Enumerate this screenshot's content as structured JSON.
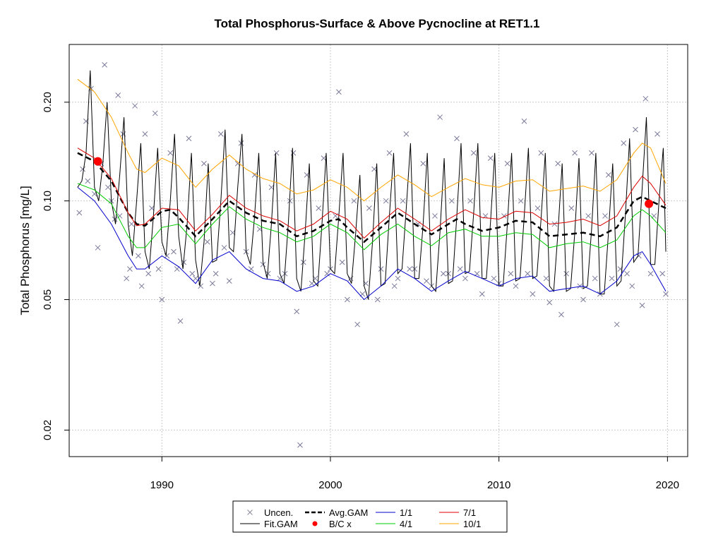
{
  "chart_data": {
    "type": "line",
    "title": "Total Phosphorus-Surface & Above Pycnocline at RET1.1",
    "xlabel": "",
    "ylabel": "Total Phosphorus [mg/L]",
    "y_scale": "log",
    "xlim": [
      1984.5,
      2021.2
    ],
    "ylim": [
      0.0166,
      0.3
    ],
    "x_ticks": [
      1990,
      2000,
      2010,
      2020
    ],
    "x_tick_labels": [
      "1990",
      "2000",
      "2010",
      "2020"
    ],
    "y_ticks": [
      0.02,
      0.05,
      0.1,
      0.2
    ],
    "y_tick_labels": [
      "0.02",
      "0.05",
      "0.10",
      "0.20"
    ],
    "grid": true,
    "reference_line_y": 0.1,
    "legend_position": "bottom",
    "legend": [
      {
        "label": "Uncen.",
        "kind": "cross",
        "color": "#8a8a9a"
      },
      {
        "label": "Fit.GAM",
        "kind": "line",
        "color": "#000000"
      },
      {
        "label": "Avg.GAM",
        "kind": "dashed",
        "color": "#000000"
      },
      {
        "label": "B/C x",
        "kind": "dot",
        "color": "#ff0000"
      },
      {
        "label": "1/1",
        "kind": "line",
        "color": "#0000cc"
      },
      {
        "label": "4/1",
        "kind": "line",
        "color": "#00cc00"
      },
      {
        "label": "7/1",
        "kind": "line",
        "color": "#dd0000"
      },
      {
        "label": "10/1",
        "kind": "line",
        "color": "#ffa500"
      }
    ],
    "series": [
      {
        "name": "Avg.GAM",
        "color": "#000000",
        "x": [
          1985.0,
          1986.0,
          1987.0,
          1988.0,
          1988.5,
          1989.0,
          1990.0,
          1990.5,
          1991.0,
          1992.0,
          1993.0,
          1994.0,
          1995.0,
          1996.0,
          1997.0,
          1998.0,
          1999.0,
          2000.0,
          2000.5,
          2001.0,
          2002.0,
          2003.0,
          2004.0,
          2005.0,
          2006.0,
          2007.0,
          2007.5,
          2008.0,
          2009.0,
          2010.0,
          2011.0,
          2012.0,
          2013.0,
          2014.0,
          2015.0,
          2016.0,
          2017.0,
          2018.0,
          2018.5,
          2019.0,
          2019.9
        ],
        "y": [
          0.14,
          0.132,
          0.115,
          0.092,
          0.085,
          0.084,
          0.093,
          0.094,
          0.089,
          0.078,
          0.088,
          0.1,
          0.092,
          0.087,
          0.085,
          0.078,
          0.081,
          0.087,
          0.088,
          0.083,
          0.075,
          0.083,
          0.092,
          0.085,
          0.079,
          0.085,
          0.088,
          0.085,
          0.081,
          0.083,
          0.087,
          0.086,
          0.078,
          0.079,
          0.08,
          0.078,
          0.083,
          0.1,
          0.103,
          0.1,
          0.095
        ]
      },
      {
        "name": "1/1",
        "color": "#0000cc",
        "x": [
          1985.0,
          1986.0,
          1987.0,
          1988.0,
          1988.5,
          1989.0,
          1990.0,
          1991.0,
          1992.0,
          1993.0,
          1994.0,
          1995.0,
          1996.0,
          1997.0,
          1998.0,
          1999.0,
          2000.0,
          2001.0,
          2002.0,
          2003.0,
          2004.0,
          2005.0,
          2006.0,
          2007.0,
          2008.0,
          2009.0,
          2010.0,
          2011.0,
          2012.0,
          2013.0,
          2014.0,
          2015.0,
          2016.0,
          2017.0,
          2018.0,
          2018.5,
          2019.0,
          2019.9
        ],
        "y": [
          0.11,
          0.1,
          0.085,
          0.068,
          0.062,
          0.062,
          0.068,
          0.063,
          0.056,
          0.066,
          0.07,
          0.062,
          0.058,
          0.057,
          0.053,
          0.055,
          0.06,
          0.057,
          0.05,
          0.055,
          0.062,
          0.058,
          0.053,
          0.057,
          0.061,
          0.058,
          0.055,
          0.058,
          0.059,
          0.053,
          0.054,
          0.055,
          0.052,
          0.057,
          0.068,
          0.07,
          0.064,
          0.053
        ]
      },
      {
        "name": "4/1",
        "color": "#00cc00",
        "x": [
          1985.0,
          1986.0,
          1987.0,
          1988.0,
          1988.5,
          1989.0,
          1990.0,
          1991.0,
          1992.0,
          1993.0,
          1994.0,
          1995.0,
          1996.0,
          1997.0,
          1998.0,
          1999.0,
          2000.0,
          2001.0,
          2002.0,
          2003.0,
          2004.0,
          2005.0,
          2006.0,
          2007.0,
          2008.0,
          2009.0,
          2010.0,
          2011.0,
          2012.0,
          2013.0,
          2014.0,
          2015.0,
          2016.0,
          2017.0,
          2018.0,
          2018.5,
          2019.0,
          2019.9
        ],
        "y": [
          0.113,
          0.108,
          0.098,
          0.078,
          0.072,
          0.072,
          0.083,
          0.085,
          0.074,
          0.085,
          0.096,
          0.088,
          0.083,
          0.08,
          0.075,
          0.078,
          0.085,
          0.08,
          0.071,
          0.079,
          0.085,
          0.078,
          0.073,
          0.08,
          0.082,
          0.078,
          0.078,
          0.08,
          0.079,
          0.072,
          0.074,
          0.075,
          0.072,
          0.076,
          0.09,
          0.094,
          0.09,
          0.08
        ]
      },
      {
        "name": "7/1",
        "color": "#dd0000",
        "x": [
          1985.0,
          1986.0,
          1987.0,
          1988.0,
          1988.5,
          1989.0,
          1990.0,
          1991.0,
          1992.0,
          1993.0,
          1994.0,
          1995.0,
          1996.0,
          1997.0,
          1998.0,
          1999.0,
          2000.0,
          2001.0,
          2002.0,
          2003.0,
          2004.0,
          2005.0,
          2006.0,
          2007.0,
          2008.0,
          2009.0,
          2010.0,
          2011.0,
          2012.0,
          2013.0,
          2014.0,
          2015.0,
          2016.0,
          2017.0,
          2018.0,
          2018.5,
          2019.0,
          2019.9
        ],
        "y": [
          0.145,
          0.135,
          0.117,
          0.092,
          0.084,
          0.085,
          0.095,
          0.094,
          0.081,
          0.091,
          0.104,
          0.095,
          0.09,
          0.087,
          0.081,
          0.085,
          0.093,
          0.088,
          0.077,
          0.086,
          0.095,
          0.088,
          0.081,
          0.088,
          0.094,
          0.089,
          0.088,
          0.093,
          0.092,
          0.085,
          0.086,
          0.088,
          0.084,
          0.09,
          0.11,
          0.119,
          0.113,
          0.097
        ]
      },
      {
        "name": "10/1",
        "color": "#ffa500",
        "x": [
          1985.0,
          1986.0,
          1987.0,
          1988.0,
          1988.5,
          1989.0,
          1990.0,
          1991.0,
          1992.0,
          1993.0,
          1994.0,
          1995.0,
          1996.0,
          1997.0,
          1998.0,
          1999.0,
          2000.0,
          2001.0,
          2002.0,
          2003.0,
          2004.0,
          2005.0,
          2006.0,
          2007.0,
          2008.0,
          2009.0,
          2010.0,
          2011.0,
          2012.0,
          2013.0,
          2014.0,
          2015.0,
          2016.0,
          2017.0,
          2018.0,
          2018.5,
          2019.0,
          2019.9
        ],
        "y": [
          0.235,
          0.215,
          0.18,
          0.14,
          0.125,
          0.122,
          0.135,
          0.128,
          0.11,
          0.125,
          0.138,
          0.125,
          0.117,
          0.113,
          0.105,
          0.108,
          0.116,
          0.11,
          0.1,
          0.11,
          0.12,
          0.112,
          0.103,
          0.11,
          0.117,
          0.112,
          0.11,
          0.115,
          0.116,
          0.107,
          0.109,
          0.111,
          0.107,
          0.116,
          0.14,
          0.15,
          0.145,
          0.113
        ]
      }
    ],
    "fit_gam": {
      "name": "Fit.GAM",
      "color": "#000000",
      "x": [
        1985.0,
        1985.25,
        1985.5,
        1985.75,
        1986.0,
        1986.25,
        1986.5,
        1986.75,
        1987.0,
        1987.25,
        1987.5,
        1987.75,
        1988.0,
        1988.25,
        1988.5,
        1988.75,
        1989.0,
        1989.25,
        1989.5,
        1989.75,
        1990.0,
        1990.25,
        1990.5,
        1990.75,
        1991.0,
        1991.25,
        1991.5,
        1991.75,
        1992.0,
        1992.25,
        1992.5,
        1992.75,
        1993.0,
        1993.25,
        1993.5,
        1993.75,
        1994.0,
        1994.25,
        1994.5,
        1994.75,
        1995.0,
        1995.25,
        1995.5,
        1995.75,
        1996.0,
        1996.25,
        1996.5,
        1996.75,
        1997.0,
        1997.25,
        1997.5,
        1997.75,
        1998.0,
        1998.25,
        1998.5,
        1998.75,
        1999.0,
        1999.25,
        1999.5,
        1999.75,
        2000.0,
        2000.25,
        2000.5,
        2000.75,
        2001.0,
        2001.25,
        2001.5,
        2001.75,
        2002.0,
        2002.25,
        2002.5,
        2002.75,
        2003.0,
        2003.25,
        2003.5,
        2003.75,
        2004.0,
        2004.25,
        2004.5,
        2004.75,
        2005.0,
        2005.25,
        2005.5,
        2005.75,
        2006.0,
        2006.25,
        2006.5,
        2006.75,
        2007.0,
        2007.25,
        2007.5,
        2007.75,
        2008.0,
        2008.25,
        2008.5,
        2008.75,
        2009.0,
        2009.25,
        2009.5,
        2009.75,
        2010.0,
        2010.25,
        2010.5,
        2010.75,
        2011.0,
        2011.25,
        2011.5,
        2011.75,
        2012.0,
        2012.25,
        2012.5,
        2012.75,
        2013.0,
        2013.25,
        2013.5,
        2013.75,
        2014.0,
        2014.25,
        2014.5,
        2014.75,
        2015.0,
        2015.25,
        2015.5,
        2015.75,
        2016.0,
        2016.25,
        2016.5,
        2016.75,
        2017.0,
        2017.25,
        2017.5,
        2017.75,
        2018.0,
        2018.25,
        2018.5,
        2018.75,
        2019.0,
        2019.25,
        2019.5,
        2019.75,
        2019.9
      ],
      "y": [
        0.11,
        0.115,
        0.14,
        0.25,
        0.11,
        0.1,
        0.13,
        0.2,
        0.1,
        0.085,
        0.12,
        0.18,
        0.085,
        0.068,
        0.1,
        0.15,
        0.07,
        0.062,
        0.09,
        0.145,
        0.075,
        0.068,
        0.1,
        0.16,
        0.078,
        0.062,
        0.085,
        0.14,
        0.066,
        0.055,
        0.075,
        0.13,
        0.065,
        0.066,
        0.1,
        0.165,
        0.072,
        0.07,
        0.11,
        0.16,
        0.07,
        0.064,
        0.09,
        0.14,
        0.065,
        0.058,
        0.085,
        0.14,
        0.06,
        0.056,
        0.085,
        0.145,
        0.058,
        0.053,
        0.08,
        0.13,
        0.057,
        0.055,
        0.085,
        0.14,
        0.062,
        0.06,
        0.09,
        0.14,
        0.06,
        0.056,
        0.08,
        0.12,
        0.055,
        0.05,
        0.075,
        0.13,
        0.055,
        0.056,
        0.09,
        0.14,
        0.06,
        0.062,
        0.095,
        0.15,
        0.058,
        0.058,
        0.085,
        0.14,
        0.055,
        0.053,
        0.08,
        0.135,
        0.056,
        0.057,
        0.09,
        0.15,
        0.06,
        0.061,
        0.092,
        0.15,
        0.058,
        0.058,
        0.086,
        0.14,
        0.055,
        0.055,
        0.085,
        0.14,
        0.057,
        0.058,
        0.09,
        0.145,
        0.058,
        0.059,
        0.088,
        0.14,
        0.055,
        0.053,
        0.08,
        0.13,
        0.053,
        0.054,
        0.08,
        0.135,
        0.054,
        0.055,
        0.082,
        0.14,
        0.052,
        0.052,
        0.08,
        0.13,
        0.055,
        0.057,
        0.09,
        0.155,
        0.065,
        0.068,
        0.11,
        0.18,
        0.064,
        0.064,
        0.1,
        0.145,
        0.07
      ]
    },
    "observations": {
      "name": "Uncen.",
      "marker": "x",
      "color": "#7a7a9a",
      "x": [
        1985.1,
        1985.3,
        1985.5,
        1985.6,
        1985.8,
        1986.0,
        1986.2,
        1986.4,
        1986.6,
        1986.8,
        1987.0,
        1987.2,
        1987.4,
        1987.5,
        1987.7,
        1987.9,
        1988.1,
        1988.2,
        1988.4,
        1988.6,
        1988.8,
        1989.0,
        1989.2,
        1989.4,
        1989.6,
        1989.8,
        1990.0,
        1990.3,
        1990.5,
        1990.7,
        1990.9,
        1991.1,
        1991.3,
        1991.6,
        1991.8,
        1992.0,
        1992.3,
        1992.5,
        1992.7,
        1993.0,
        1993.2,
        1993.5,
        1993.7,
        1994.0,
        1994.2,
        1994.5,
        1994.7,
        1995.0,
        1995.3,
        1995.5,
        1995.8,
        1996.0,
        1996.3,
        1996.5,
        1996.8,
        1997.0,
        1997.3,
        1997.6,
        1997.8,
        1998.0,
        1998.2,
        1998.4,
        1998.6,
        1998.9,
        1999.1,
        1999.3,
        1999.6,
        1999.8,
        2000.0,
        2000.3,
        2000.5,
        2000.7,
        2001.0,
        2001.2,
        2001.4,
        2001.6,
        2001.9,
        2002.1,
        2002.3,
        2002.6,
        2002.8,
        2003.0,
        2003.3,
        2003.5,
        2003.8,
        2004.0,
        2004.3,
        2004.5,
        2004.7,
        2005.0,
        2005.2,
        2005.5,
        2005.7,
        2006.0,
        2006.2,
        2006.5,
        2006.7,
        2007.0,
        2007.2,
        2007.5,
        2007.7,
        2008.0,
        2008.3,
        2008.5,
        2008.7,
        2009.0,
        2009.2,
        2009.5,
        2009.7,
        2010.0,
        2010.3,
        2010.5,
        2010.7,
        2011.0,
        2011.3,
        2011.5,
        2011.7,
        2012.0,
        2012.3,
        2012.5,
        2012.8,
        2013.0,
        2013.3,
        2013.5,
        2013.7,
        2014.0,
        2014.3,
        2014.5,
        2014.8,
        2015.0,
        2015.3,
        2015.5,
        2015.7,
        2016.0,
        2016.3,
        2016.5,
        2016.7,
        2017.0,
        2017.2,
        2017.4,
        2017.6,
        2017.9,
        2018.1,
        2018.3,
        2018.5,
        2018.7,
        2019.0,
        2019.2,
        2019.4,
        2019.7,
        2019.9
      ],
      "y": [
        0.092,
        0.125,
        0.175,
        0.115,
        0.22,
        0.105,
        0.072,
        0.13,
        0.26,
        0.11,
        0.1,
        0.088,
        0.21,
        0.09,
        0.16,
        0.058,
        0.062,
        0.085,
        0.195,
        0.068,
        0.055,
        0.16,
        0.06,
        0.095,
        0.185,
        0.062,
        0.05,
        0.068,
        0.14,
        0.07,
        0.062,
        0.043,
        0.065,
        0.155,
        0.06,
        0.058,
        0.055,
        0.13,
        0.075,
        0.056,
        0.06,
        0.16,
        0.072,
        0.057,
        0.08,
        0.13,
        0.15,
        0.07,
        0.062,
        0.12,
        0.082,
        0.064,
        0.06,
        0.11,
        0.14,
        0.058,
        0.06,
        0.1,
        0.14,
        0.046,
        0.018,
        0.065,
        0.12,
        0.056,
        0.058,
        0.095,
        0.135,
        0.06,
        0.062,
        0.09,
        0.215,
        0.065,
        0.05,
        0.058,
        0.1,
        0.042,
        0.052,
        0.056,
        0.095,
        0.125,
        0.05,
        0.062,
        0.1,
        0.14,
        0.055,
        0.058,
        0.1,
        0.16,
        0.062,
        0.062,
        0.085,
        0.13,
        0.057,
        0.055,
        0.09,
        0.18,
        0.06,
        0.06,
        0.1,
        0.155,
        0.062,
        0.058,
        0.1,
        0.14,
        0.06,
        0.052,
        0.09,
        0.135,
        0.058,
        0.056,
        0.09,
        0.13,
        0.06,
        0.055,
        0.1,
        0.175,
        0.06,
        0.052,
        0.095,
        0.14,
        0.058,
        0.049,
        0.085,
        0.13,
        0.045,
        0.06,
        0.095,
        0.14,
        0.055,
        0.05,
        0.09,
        0.14,
        0.058,
        0.052,
        0.09,
        0.12,
        0.058,
        0.042,
        0.062,
        0.15,
        0.06,
        0.055,
        0.165,
        0.068,
        0.048,
        0.205,
        0.06,
        0.09,
        0.16,
        0.06,
        0.052
      ]
    },
    "bc_points": {
      "name": "B/C x",
      "color": "#ff0000",
      "x": [
        1986.2,
        2018.9
      ],
      "y": [
        0.132,
        0.098
      ]
    }
  }
}
